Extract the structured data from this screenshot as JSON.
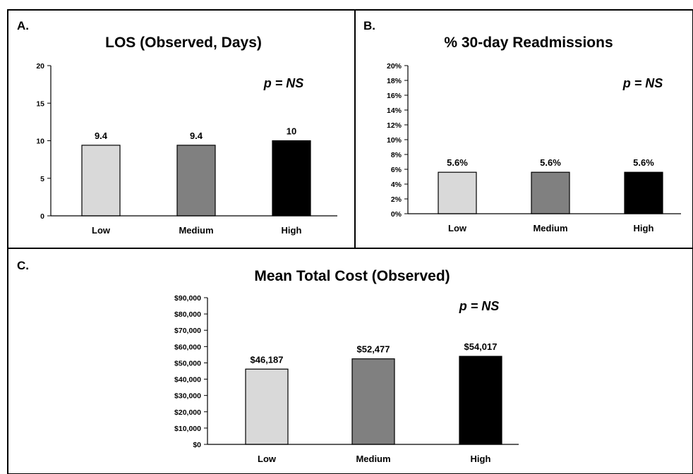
{
  "chart_data": [
    {
      "panel": "A.",
      "type": "bar",
      "title": "LOS (Observed, Days)",
      "annotation": "p = NS",
      "categories": [
        "Low",
        "Medium",
        "High"
      ],
      "values": [
        9.4,
        9.4,
        10
      ],
      "data_labels": [
        "9.4",
        "9.4",
        "10"
      ],
      "ylim": [
        0,
        20
      ],
      "yticks": [
        0,
        5,
        10,
        15,
        20
      ],
      "ytick_labels": [
        "0",
        "5",
        "10",
        "15",
        "20"
      ],
      "colors": [
        "#d9d9d9",
        "#808080",
        "#000000"
      ],
      "grid": false
    },
    {
      "panel": "B.",
      "type": "bar",
      "title": "% 30-day Readmissions",
      "annotation": "p = NS",
      "categories": [
        "Low",
        "Medium",
        "High"
      ],
      "values": [
        5.6,
        5.6,
        5.6
      ],
      "data_labels": [
        "5.6%",
        "5.6%",
        "5.6%"
      ],
      "ylim": [
        0,
        20
      ],
      "yticks": [
        0,
        2,
        4,
        6,
        8,
        10,
        12,
        14,
        16,
        18,
        20
      ],
      "ytick_labels": [
        "0%",
        "2%",
        "4%",
        "6%",
        "8%",
        "10%",
        "12%",
        "14%",
        "16%",
        "18%",
        "20%"
      ],
      "colors": [
        "#d9d9d9",
        "#808080",
        "#000000"
      ],
      "grid": false
    },
    {
      "panel": "C.",
      "type": "bar",
      "title": "Mean Total Cost (Observed)",
      "annotation": "p = NS",
      "categories": [
        "Low",
        "Medium",
        "High"
      ],
      "values": [
        46187,
        52477,
        54017
      ],
      "data_labels": [
        "$46,187",
        "$52,477",
        "$54,017"
      ],
      "ylim": [
        0,
        90000
      ],
      "yticks": [
        0,
        10000,
        20000,
        30000,
        40000,
        50000,
        60000,
        70000,
        80000,
        90000
      ],
      "ytick_labels": [
        "$0",
        "$10,000",
        "$20,000",
        "$30,000",
        "$40,000",
        "$50,000",
        "$60,000",
        "$70,000",
        "$80,000",
        "$90,000"
      ],
      "colors": [
        "#d9d9d9",
        "#808080",
        "#000000"
      ],
      "grid": false
    }
  ]
}
